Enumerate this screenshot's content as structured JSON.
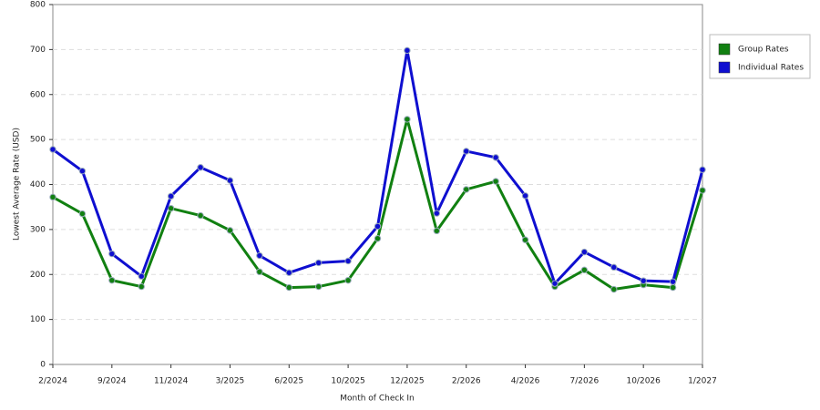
{
  "chart_data": {
    "type": "line",
    "x_label": "Month of Check In",
    "y_label": "Lowest Average Rate (USD)",
    "categories": [
      "2/2024",
      null,
      "9/2024",
      null,
      "11/2024",
      null,
      "3/2025",
      null,
      "6/2025",
      null,
      "10/2025",
      null,
      "12/2025",
      null,
      "2/2026",
      null,
      "4/2026",
      null,
      "7/2026",
      null,
      "10/2026",
      null,
      "1/2027"
    ],
    "series": [
      {
        "name": "Group Rates",
        "color": "#118011",
        "values": [
          372,
          335,
          187,
          173,
          347,
          331,
          298,
          206,
          171,
          173,
          187,
          280,
          545,
          297,
          389,
          407,
          277,
          173,
          210,
          167,
          177,
          171,
          387
        ]
      },
      {
        "name": "Individual Rates",
        "color": "#0f0fd0",
        "values": [
          478,
          430,
          246,
          196,
          374,
          438,
          409,
          242,
          204,
          226,
          230,
          307,
          698,
          336,
          474,
          460,
          375,
          180,
          250,
          216,
          186,
          184,
          433
        ]
      }
    ],
    "ylim": [
      0,
      800
    ],
    "yticks": [
      0,
      100,
      200,
      300,
      400,
      500,
      600,
      700,
      800
    ],
    "grid": true
  }
}
